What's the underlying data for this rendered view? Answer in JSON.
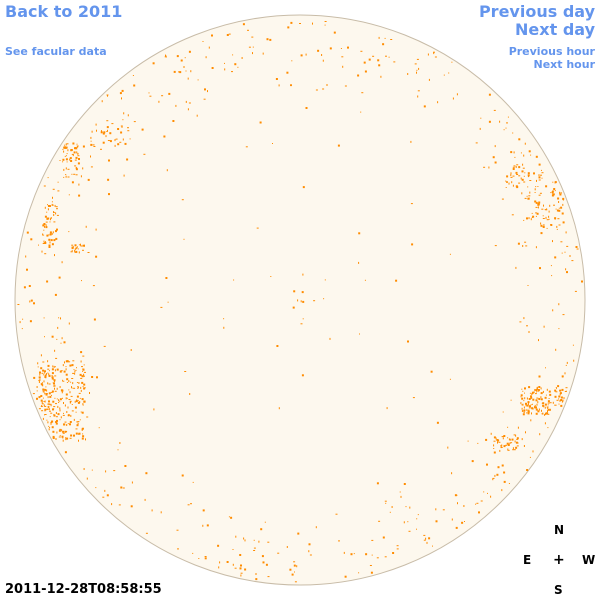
{
  "nav": {
    "back_label": "Back to 2011",
    "facular_label": "See facular data",
    "previous_day_label": "Previous day",
    "next_day_label": "Next day",
    "previous_hour_label": "Previous hour",
    "next_hour_label": "Next hour"
  },
  "timestamp": "2011-12-28T08:58:55",
  "compass": {
    "north": "N",
    "east": "E",
    "center": "+",
    "west": "W",
    "south": "S"
  },
  "colors": {
    "link": "#6495ed",
    "disk_fill": "#fdf8ee",
    "disk_border": "#c8bca8",
    "faculae": "#ff8c00"
  }
}
